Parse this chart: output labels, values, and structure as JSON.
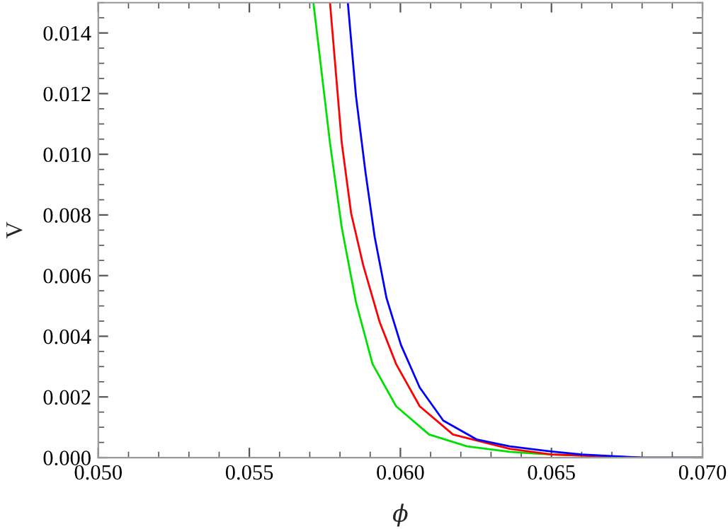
{
  "chart_data": {
    "type": "line",
    "xlabel": "ϕ",
    "ylabel": "V",
    "series": [
      {
        "color": "#00e000",
        "x": [
          0.05712,
          0.05767,
          0.05806,
          0.05853,
          0.05908,
          0.05986,
          0.06095,
          0.06221,
          0.06362,
          0.065,
          0.068,
          0.07
        ],
        "values": [
          0.015,
          0.01037,
          0.00758,
          0.00512,
          0.00308,
          0.00169,
          0.00076,
          0.00037,
          0.00019,
          0.0001,
          0.0,
          0.0
        ]
      },
      {
        "color": "#ff0000",
        "x": [
          0.05767,
          0.05806,
          0.05837,
          0.05877,
          0.05931,
          0.05986,
          0.06064,
          0.06174,
          0.06362,
          0.065,
          0.068,
          0.07
        ],
        "values": [
          0.015,
          0.01037,
          0.00805,
          0.00634,
          0.00448,
          0.00308,
          0.00169,
          0.00076,
          0.00029,
          0.0001,
          0.0,
          0.0
        ]
      },
      {
        "color": "#0000ff",
        "x": [
          0.05826,
          0.05853,
          0.05884,
          0.05915,
          0.05954,
          0.06002,
          0.06064,
          0.06142,
          0.06252,
          0.06362,
          0.065,
          0.066,
          0.068,
          0.07
        ],
        "values": [
          0.015,
          0.01192,
          0.00944,
          0.00727,
          0.00526,
          0.00371,
          0.00231,
          0.00122,
          0.0006,
          0.00037,
          0.0002,
          0.0001,
          0.0,
          0.0
        ]
      }
    ],
    "xlim": [
      0.05,
      0.07
    ],
    "xticks": [
      {
        "value": 0.05,
        "label": "0.050"
      },
      {
        "value": 0.055,
        "label": "0.055"
      },
      {
        "value": 0.06,
        "label": "0.060"
      },
      {
        "value": 0.065,
        "label": "0.065"
      },
      {
        "value": 0.07,
        "label": "0.070"
      }
    ],
    "ylim": [
      0,
      0.015
    ],
    "yticks": [
      {
        "value": 0,
        "label": "0.000"
      },
      {
        "value": 0.002,
        "label": "0.002"
      },
      {
        "value": 0.004,
        "label": "0.004"
      },
      {
        "value": 0.006,
        "label": "0.006"
      },
      {
        "value": 0.008,
        "label": "0.008"
      },
      {
        "value": 0.01,
        "label": "0.010"
      },
      {
        "value": 0.012,
        "label": "0.012"
      },
      {
        "value": 0.014,
        "label": "0.014"
      }
    ],
    "grid": false,
    "legend": false,
    "marker": "none",
    "line_style": "solid"
  }
}
